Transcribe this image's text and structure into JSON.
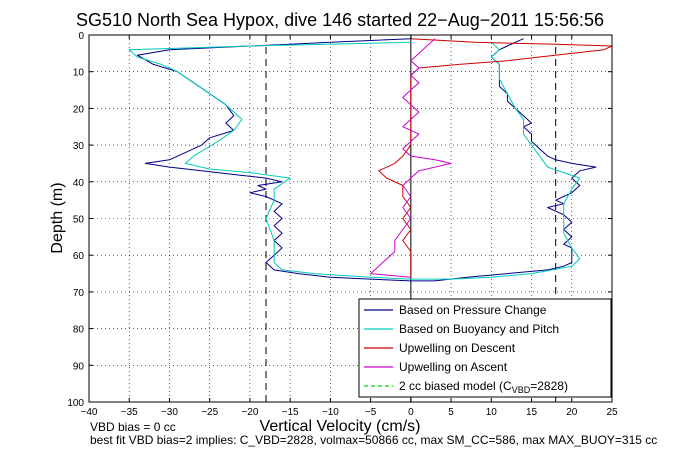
{
  "chart_data": {
    "type": "line",
    "title": "SG510 North Sea Hypox, dive 146 started 22−Aug−2011 15:56:56",
    "xlabel": "Vertical Velocity (cm/s)",
    "ylabel": "Depth (m)",
    "xlim": [
      -40,
      25
    ],
    "ylim": [
      100,
      0
    ],
    "y_reversed": true,
    "grid": true,
    "xticks": [
      -40,
      -35,
      -30,
      -25,
      -20,
      -15,
      -10,
      -5,
      0,
      5,
      10,
      15,
      20,
      25
    ],
    "yticks": [
      0,
      10,
      20,
      30,
      40,
      50,
      60,
      70,
      80,
      90,
      100
    ],
    "reference_lines": [
      {
        "orientation": "vertical",
        "x": -18,
        "style": "dashed",
        "color": "#000000"
      },
      {
        "orientation": "vertical",
        "x": 18,
        "style": "dashed",
        "color": "#000000"
      },
      {
        "orientation": "vertical",
        "x": 0,
        "style": "solid",
        "color": "#000000"
      }
    ],
    "legend": {
      "position": "bottom-right",
      "entries": [
        {
          "label": "Based on Pressure Change",
          "color": "#00008b",
          "style": "solid"
        },
        {
          "label": "Based on Buoyancy and Pitch",
          "color": "#00ccbb",
          "style": "solid"
        },
        {
          "label": "Upwelling on Descent",
          "color": "#cc0000",
          "style": "solid"
        },
        {
          "label": "Upwelling on Ascent",
          "color": "#cc00cc",
          "style": "solid"
        },
        {
          "label": "2 cc biased model (C",
          "sub": "VBD",
          "suffix": "=2828)",
          "color": "#00dd00",
          "style": "dashed"
        }
      ]
    },
    "series": [
      {
        "name": "Based on Pressure Change",
        "color": "#00008b",
        "points": [
          [
            0,
            1
          ],
          [
            -10,
            2
          ],
          [
            -15,
            2.5
          ],
          [
            -20,
            3
          ],
          [
            -30,
            4
          ],
          [
            -34,
            5.5
          ],
          [
            -32,
            8
          ],
          [
            -29,
            10
          ],
          [
            -27,
            13
          ],
          [
            -25,
            16
          ],
          [
            -23,
            19
          ],
          [
            -22,
            22
          ],
          [
            -23,
            24
          ],
          [
            -22,
            26
          ],
          [
            -25,
            28
          ],
          [
            -26,
            30
          ],
          [
            -28,
            32
          ],
          [
            -30,
            34
          ],
          [
            -33,
            35
          ],
          [
            -30,
            36
          ],
          [
            -26,
            37
          ],
          [
            -22,
            38
          ],
          [
            -18,
            39
          ],
          [
            -16,
            40
          ],
          [
            -19,
            41
          ],
          [
            -18,
            42
          ],
          [
            -20,
            43
          ],
          [
            -18,
            44
          ],
          [
            -17,
            45
          ],
          [
            -16,
            46
          ],
          [
            -17,
            48
          ],
          [
            -16,
            50
          ],
          [
            -17,
            52
          ],
          [
            -16,
            54
          ],
          [
            -17,
            56
          ],
          [
            -16,
            58
          ],
          [
            -17,
            60
          ],
          [
            -18,
            62
          ],
          [
            -17,
            64
          ],
          [
            -14,
            65
          ],
          [
            -10,
            66
          ],
          [
            -5,
            66.5
          ],
          [
            0,
            67
          ],
          [
            3,
            67
          ],
          [
            7,
            66
          ],
          [
            12,
            65
          ],
          [
            17,
            64
          ],
          [
            19,
            63
          ],
          [
            20,
            62
          ],
          [
            20,
            60
          ],
          [
            20,
            58
          ],
          [
            19,
            57
          ],
          [
            20,
            55
          ],
          [
            19,
            53
          ],
          [
            20,
            51
          ],
          [
            19,
            49
          ],
          [
            17,
            47
          ],
          [
            19,
            46
          ],
          [
            18,
            45
          ],
          [
            19,
            44
          ],
          [
            20,
            43
          ],
          [
            21,
            41
          ],
          [
            20,
            39
          ],
          [
            21,
            37
          ],
          [
            23,
            36
          ],
          [
            20,
            35
          ],
          [
            18,
            34
          ],
          [
            17,
            33
          ],
          [
            16,
            31
          ],
          [
            15,
            29
          ],
          [
            15,
            27
          ],
          [
            14,
            25
          ],
          [
            15,
            24
          ],
          [
            14,
            22
          ],
          [
            13,
            20
          ],
          [
            12,
            18
          ],
          [
            12,
            16
          ],
          [
            11,
            14
          ],
          [
            11,
            12
          ],
          [
            11,
            10
          ],
          [
            11,
            8
          ],
          [
            10,
            6
          ],
          [
            11,
            4
          ],
          [
            12,
            3
          ],
          [
            13,
            2
          ],
          [
            14,
            1
          ]
        ]
      },
      {
        "name": "Based on Buoyancy and Pitch",
        "color": "#00ccbb",
        "points": [
          [
            0,
            2
          ],
          [
            -20,
            3
          ],
          [
            -35,
            4
          ],
          [
            -34,
            6
          ],
          [
            -31,
            8
          ],
          [
            -29,
            10
          ],
          [
            -27,
            13
          ],
          [
            -25,
            16
          ],
          [
            -23,
            19
          ],
          [
            -21,
            23
          ],
          [
            -22,
            26
          ],
          [
            -24,
            29
          ],
          [
            -27,
            33
          ],
          [
            -28,
            35
          ],
          [
            -25,
            36.5
          ],
          [
            -20,
            37.5
          ],
          [
            -15,
            39
          ],
          [
            -17,
            42
          ],
          [
            -17,
            45
          ],
          [
            -18,
            50
          ],
          [
            -17,
            56
          ],
          [
            -17,
            62
          ],
          [
            -16,
            64
          ],
          [
            -12,
            65
          ],
          [
            -5,
            66
          ],
          [
            0,
            66.5
          ],
          [
            5,
            66.5
          ],
          [
            10,
            66
          ],
          [
            15,
            65
          ],
          [
            20,
            63
          ],
          [
            21,
            61
          ],
          [
            20,
            58
          ],
          [
            19,
            54
          ],
          [
            19,
            50
          ],
          [
            19,
            46
          ],
          [
            20,
            42
          ],
          [
            21,
            39
          ],
          [
            17,
            36
          ],
          [
            16,
            33
          ],
          [
            15,
            30
          ],
          [
            14,
            27
          ],
          [
            14,
            23
          ],
          [
            13,
            20
          ],
          [
            12,
            16
          ],
          [
            11,
            12
          ],
          [
            11,
            8
          ],
          [
            10,
            6
          ],
          [
            11,
            4
          ],
          [
            10,
            2
          ]
        ]
      },
      {
        "name": "Upwelling on Descent",
        "color": "#cc0000",
        "points": [
          [
            0,
            1
          ],
          [
            8,
            2
          ],
          [
            18,
            2.5
          ],
          [
            25,
            3
          ],
          [
            24,
            4
          ],
          [
            20,
            5
          ],
          [
            16,
            6
          ],
          [
            12,
            7
          ],
          [
            6,
            8
          ],
          [
            1,
            9
          ],
          [
            0,
            11
          ],
          [
            0,
            14
          ],
          [
            0,
            18
          ],
          [
            0,
            22
          ],
          [
            0,
            26
          ],
          [
            0,
            30
          ],
          [
            -1,
            33
          ],
          [
            -2,
            35
          ],
          [
            -4,
            37
          ],
          [
            -3,
            39
          ],
          [
            -1,
            41
          ],
          [
            -1,
            44
          ],
          [
            0,
            47
          ],
          [
            -1,
            50
          ],
          [
            0,
            53
          ],
          [
            -1,
            56
          ],
          [
            0,
            59
          ],
          [
            0,
            63
          ],
          [
            0,
            66
          ]
        ]
      },
      {
        "name": "Upwelling on Ascent",
        "color": "#cc00cc",
        "points": [
          [
            0,
            66
          ],
          [
            -5,
            65
          ],
          [
            -4,
            63
          ],
          [
            -3,
            61
          ],
          [
            -2,
            59
          ],
          [
            -2,
            56
          ],
          [
            -1,
            53
          ],
          [
            0,
            50
          ],
          [
            -1,
            47
          ],
          [
            0,
            44
          ],
          [
            -1,
            41
          ],
          [
            0,
            39
          ],
          [
            1,
            37
          ],
          [
            3,
            36
          ],
          [
            5,
            35
          ],
          [
            3,
            34
          ],
          [
            0,
            33
          ],
          [
            -1,
            31
          ],
          [
            0,
            29
          ],
          [
            1,
            27
          ],
          [
            -1,
            25
          ],
          [
            0,
            23
          ],
          [
            1,
            21
          ],
          [
            0,
            19
          ],
          [
            -1,
            17
          ],
          [
            0,
            15
          ],
          [
            1,
            13
          ],
          [
            0,
            11
          ],
          [
            1,
            9
          ],
          [
            0,
            7
          ],
          [
            1,
            5
          ],
          [
            2,
            3
          ],
          [
            3,
            1
          ]
        ]
      }
    ]
  },
  "footer": {
    "line1": "VBD bias = 0 cc",
    "line2": "best fit VBD bias=2 implies: C_VBD=2828, volmax=50866 cc, max SM_CC=586, max MAX_BUOY=315 cc"
  }
}
